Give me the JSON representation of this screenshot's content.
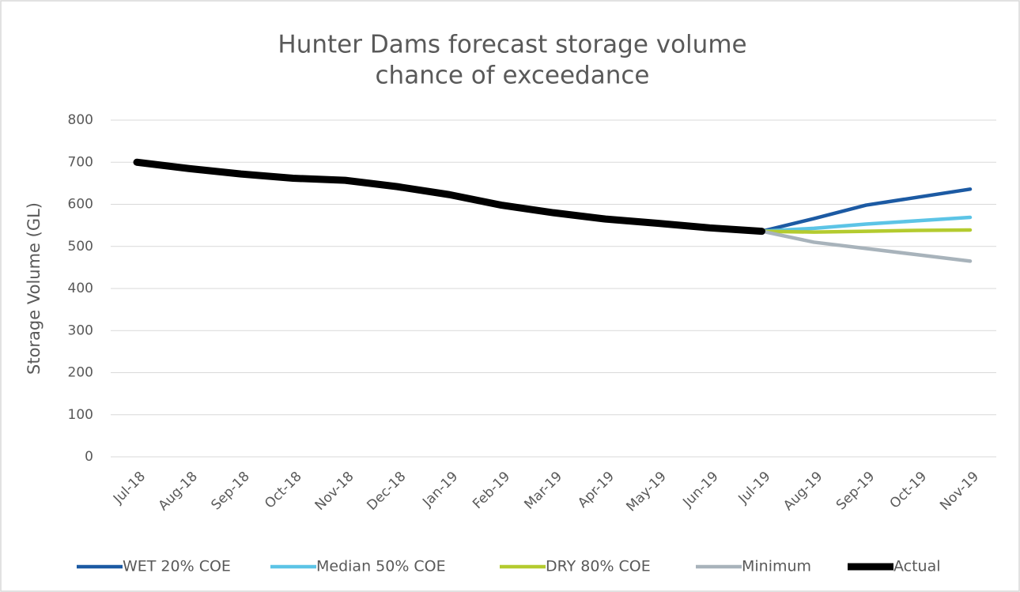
{
  "chart_data": {
    "type": "line",
    "title": [
      "Hunter Dams forecast storage volume",
      "chance of exceedance"
    ],
    "y_label": "Storage Volume (GL)",
    "categories": [
      "Jul-18",
      "Aug-18",
      "Sep-18",
      "Oct-18",
      "Nov-18",
      "Dec-18",
      "Jan-19",
      "Feb-19",
      "Mar-19",
      "Apr-19",
      "May-19",
      "Jun-19",
      "Jul-19",
      "Aug-19",
      "Sep-19",
      "Oct-19",
      "Nov-19"
    ],
    "series": [
      {
        "name": "WET 20% COE",
        "color": "#1c5aa3",
        "values": [
          null,
          null,
          null,
          null,
          null,
          null,
          null,
          null,
          null,
          null,
          null,
          null,
          536,
          566,
          598,
          617,
          636
        ]
      },
      {
        "name": "Median 50% COE",
        "color": "#5cc4e6",
        "values": [
          null,
          null,
          null,
          null,
          null,
          null,
          null,
          null,
          null,
          null,
          null,
          null,
          536,
          543,
          553,
          561,
          569
        ]
      },
      {
        "name": "DRY 80% COE",
        "color": "#b4cb2f",
        "values": [
          null,
          null,
          null,
          null,
          null,
          null,
          null,
          null,
          null,
          null,
          null,
          null,
          536,
          534,
          536,
          538,
          539
        ]
      },
      {
        "name": "Minimum",
        "color": "#a8b3bb",
        "values": [
          null,
          null,
          null,
          null,
          null,
          null,
          null,
          null,
          null,
          null,
          null,
          null,
          536,
          510,
          495,
          480,
          465
        ]
      },
      {
        "name": "Actual",
        "color": "#000000",
        "values": [
          700,
          685,
          672,
          662,
          657,
          642,
          623,
          598,
          580,
          565,
          555,
          544,
          536,
          null,
          null,
          null,
          null
        ]
      }
    ],
    "ylim": [
      0,
      800
    ],
    "yticks": [
      0,
      100,
      200,
      300,
      400,
      500,
      600,
      700,
      800
    ],
    "grid": true,
    "legend": "bottom"
  }
}
